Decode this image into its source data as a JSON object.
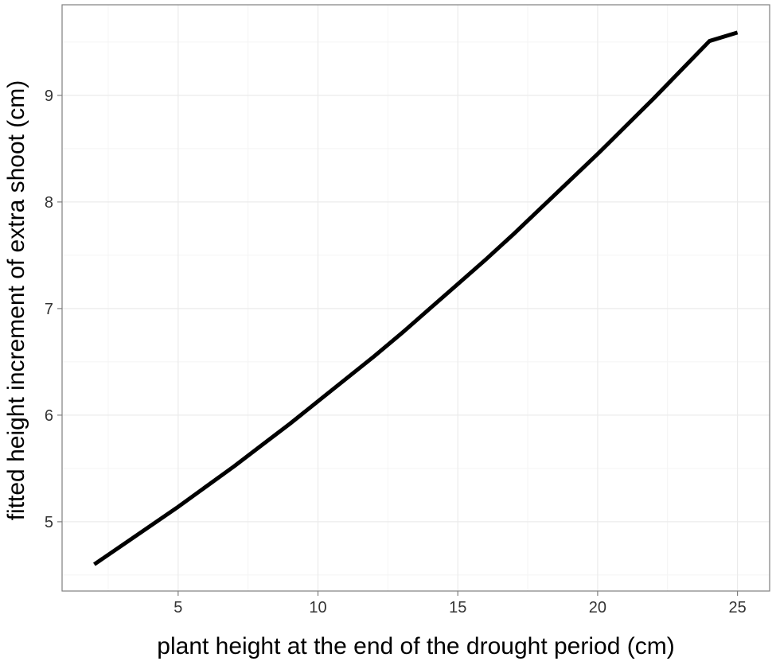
{
  "chart_data": {
    "type": "line",
    "title": "",
    "xlabel": "plant height at the end of the drought period (cm)",
    "ylabel": "fitted height increment of extra shoot (cm)",
    "xlim": [
      0.85,
      26.15
    ],
    "ylim": [
      4.35,
      9.85
    ],
    "x_ticks": [
      5,
      10,
      15,
      20,
      25
    ],
    "x_tick_labels": [
      "5",
      "10",
      "15",
      "20",
      "25"
    ],
    "y_ticks": [
      5,
      6,
      7,
      8,
      9
    ],
    "y_tick_labels": [
      "5",
      "6",
      "7",
      "8",
      "9"
    ],
    "grid": true,
    "legend": "none",
    "line_color": "#000000",
    "grid_color": "#ebebeb",
    "series": [
      {
        "x": [
          2,
          3,
          4,
          5,
          6,
          7,
          8,
          9,
          10,
          11,
          12,
          13,
          14,
          15,
          16,
          17,
          18,
          19,
          20,
          21,
          22,
          23,
          24,
          25
        ],
        "values": [
          4.6,
          4.78,
          4.96,
          5.14,
          5.33,
          5.52,
          5.72,
          5.92,
          6.13,
          6.34,
          6.55,
          6.77,
          7.0,
          7.23,
          7.46,
          7.7,
          7.95,
          8.2,
          8.45,
          8.71,
          8.97,
          9.24,
          9.51,
          9.59
        ]
      }
    ]
  }
}
